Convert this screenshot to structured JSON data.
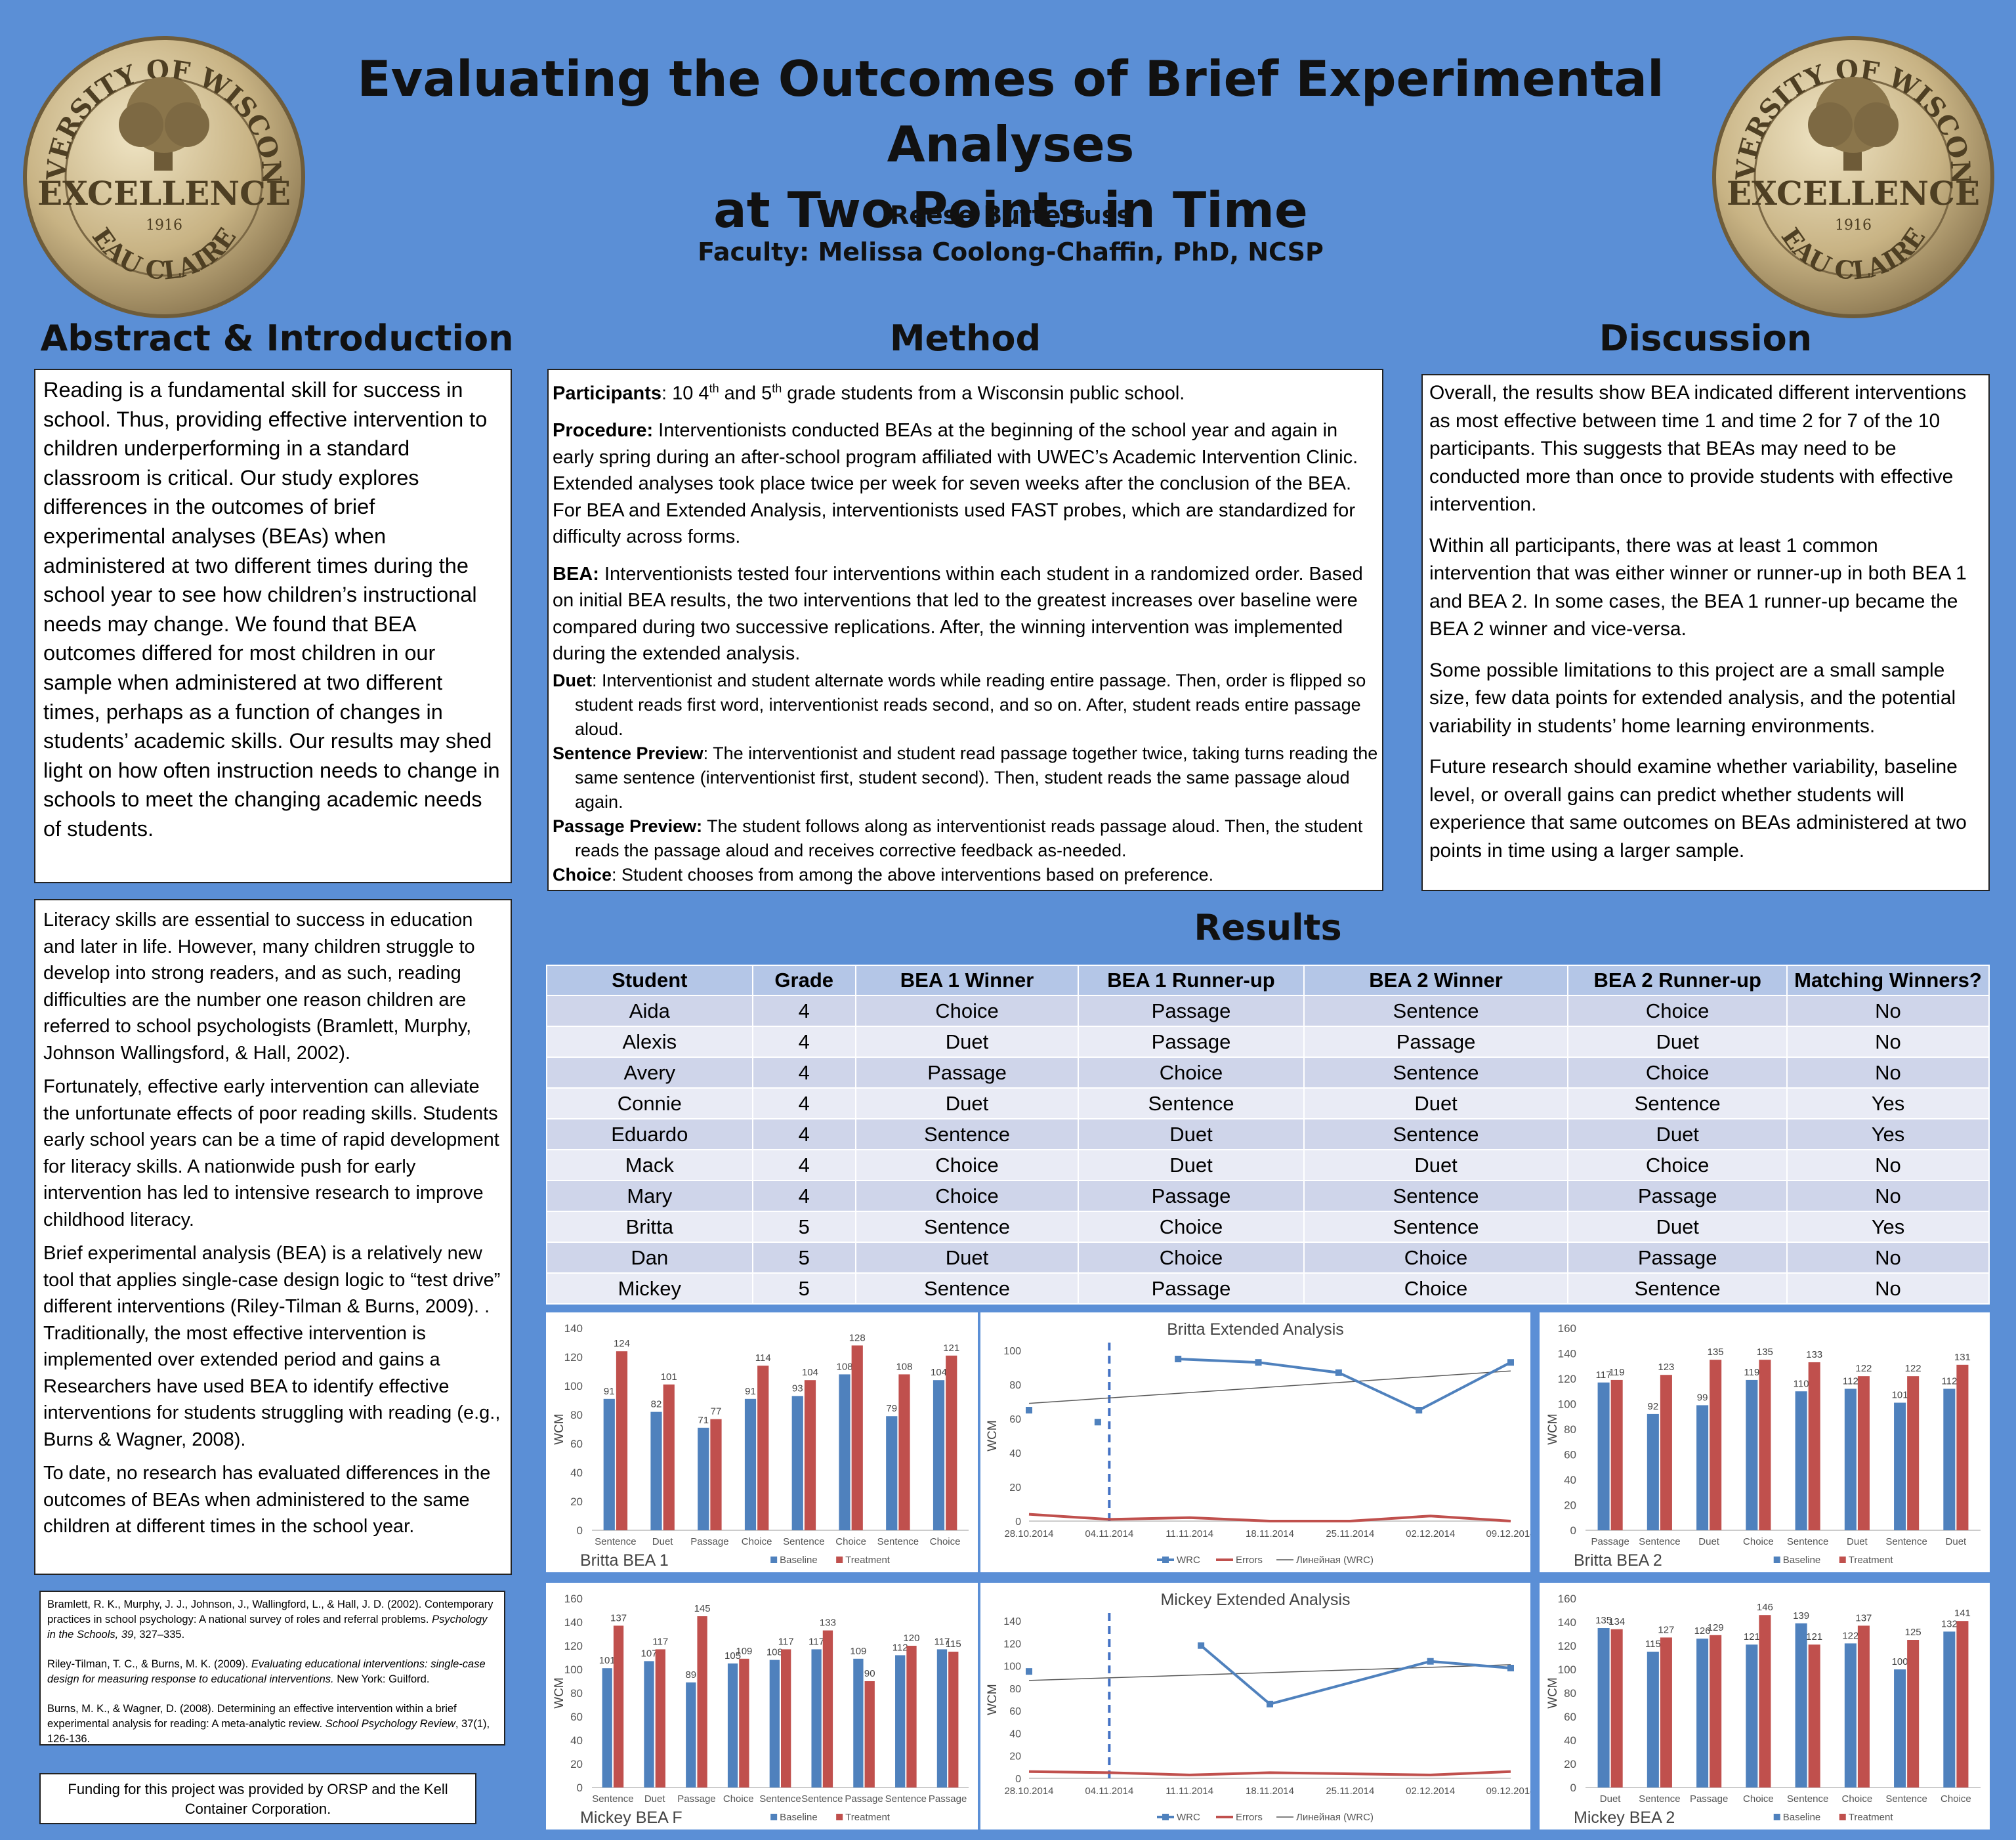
{
  "header": {
    "title_line1": "Evaluating the Outcomes of Brief Experimental Analyses",
    "title_line2": "at Two Points in Time",
    "author": "Reese Butterfuss",
    "faculty": "Faculty: Melissa Coolong-Chaffin, PhD, NCSP",
    "seal": {
      "top_text": "UNIVERSITY OF WISCONSIN",
      "middle_text": "EXCELLENCE",
      "year": "1916",
      "bottom_text": "EAU CLAIRE"
    }
  },
  "sections": {
    "abstract_title": "Abstract & Introduction",
    "method_title": "Method",
    "discussion_title": "Discussion",
    "results_title": "Results"
  },
  "abstract": "Reading is a fundamental skill for success in school. Thus, providing effective intervention to children underperforming in a standard classroom is critical. Our study explores differences in the outcomes of brief experimental analyses (BEAs) when administered at two different times during the school year to see how children’s instructional needs may change. We found that BEA outcomes differed for most children in our sample when administered at two different times, perhaps as a function of changes in students’ academic skills. Our results may shed light on how often instruction needs to change in schools to meet the changing academic needs of students.",
  "intro": [
    "Literacy skills are essential to success in education and later in life. However, many children struggle to develop into strong readers, and as such, reading difficulties are the number one reason children are referred to school psychologists (Bramlett, Murphy, Johnson Wallingsford, & Hall, 2002).",
    "Fortunately, effective early intervention can alleviate the unfortunate effects of poor reading skills. Students early school years can be a time of rapid development for literacy skills. A nationwide push for early intervention has led to intensive research to improve childhood literacy.",
    "Brief experimental analysis (BEA) is a relatively new tool that applies single-case design logic to “test drive” different interventions (Riley-Tilman & Burns, 2009). . Traditionally, the most effective intervention is implemented over extended period and gains a Researchers have used BEA to identify effective interventions for students struggling with reading (e.g., Burns & Wagner, 2008).",
    "To date, no research has evaluated differences in the outcomes of BEAs when administered to the same children at different times in the school year."
  ],
  "references": {
    "r1": "Bramlett, R. K., Murphy, J. J., Johnson, J., Wallingford, L., & Hall, J. D. (2002). Contemporary practices in school psychology: A national survey of roles and referral problems.",
    "r1_journal": "Psychology in the Schools, 39",
    "r1_end": ", 327–335.",
    "r2": "Riley-Tilman, T. C., & Burns, M. K. (2009).",
    "r2_title": "Evaluating educational interventions: single-case design for measuring response to educational interventions.",
    "r2_end": "New York: Guilford.",
    "r3": "Burns, M. K., & Wagner, D. (2008). Determining an effective intervention within a brief experimental analysis for reading: A meta-analytic review.",
    "r3_journal": "School Psychology Review",
    "r3_end": ", 37(1), 126-136."
  },
  "funding": "Funding for this project was provided by ORSP and the Kell Container Corporation.",
  "method": {
    "participants_label": "Participants",
    "participants_a": ": 10 4",
    "sup_th": "th",
    "participants_b": " and 5",
    "participants_c": " grade students from a Wisconsin public school.",
    "procedure_label": "Procedure:",
    "procedure": " Interventionists conducted BEAs at the beginning of the school year and again in early spring during an after-school program affiliated with UWEC’s Academic Intervention Clinic. Extended analyses took place twice per week for seven weeks after the conclusion of the BEA. For BEA and Extended Analysis, interventionists used FAST probes, which are standardized for difficulty across forms.",
    "bea_label": "BEA:",
    "bea": " Interventionists tested four interventions within each student in a randomized order. Based on initial BEA results, the two interventions that led to the greatest increases over baseline were compared during two successive replications. After, the winning intervention was implemented during the extended analysis.",
    "duet_label": "Duet",
    "duet": ": Interventionist and student alternate words while reading entire passage. Then, order is flipped so student reads first word, interventionist reads second, and so on. After, student reads entire passage aloud.",
    "sentence_label": "Sentence Preview",
    "sentence": ": The interventionist and student read passage together twice, taking turns reading the same sentence (interventionist first, student second). Then, student reads the same passage aloud again.",
    "passage_label": "Passage Preview:",
    "passage": " The student follows along as interventionist reads passage aloud. Then, the student reads the passage aloud and receives corrective feedback as-needed.",
    "choice_label": "Choice",
    "choice": ": Student chooses from among the above interventions based on preference."
  },
  "discussion": [
    "Overall, the results show BEA indicated different interventions as most effective between time 1 and time 2 for 7 of the 10 participants. This suggests that BEAs may need to be conducted more than once to provide students with effective intervention.",
    "Within all participants, there was at least 1 common intervention that was either winner or runner-up in both BEA 1 and BEA 2. In some cases, the BEA 1 runner-up became the BEA 2 winner and vice-versa.",
    "Some possible limitations to this project are a small sample size, few data points for extended analysis, and the potential variability in students’ home learning environments.",
    "Future research should examine whether variability, baseline level, or overall gains can predict whether students will experience that same outcomes on BEAs administered at two points in time using a larger sample."
  ],
  "results_table": {
    "headers": [
      "Student",
      "Grade",
      "BEA 1 Winner",
      "BEA 1 Runner-up",
      "BEA 2 Winner",
      "BEA 2 Runner-up",
      "Matching Winners?"
    ],
    "rows": [
      [
        "Aida",
        "4",
        "Choice",
        "Passage",
        "Sentence",
        "Choice",
        "No"
      ],
      [
        "Alexis",
        "4",
        "Duet",
        "Passage",
        "Passage",
        "Duet",
        "No"
      ],
      [
        "Avery",
        "4",
        "Passage",
        "Choice",
        "Sentence",
        "Choice",
        "No"
      ],
      [
        "Connie",
        "4",
        "Duet",
        "Sentence",
        "Duet",
        "Sentence",
        "Yes"
      ],
      [
        "Eduardo",
        "4",
        "Sentence",
        "Duet",
        "Sentence",
        "Duet",
        "Yes"
      ],
      [
        "Mack",
        "4",
        "Choice",
        "Duet",
        "Duet",
        "Choice",
        "No"
      ],
      [
        "Mary",
        "4",
        "Choice",
        "Passage",
        "Sentence",
        "Passage",
        "No"
      ],
      [
        "Britta",
        "5",
        "Sentence",
        "Choice",
        "Sentence",
        "Duet",
        "Yes"
      ],
      [
        "Dan",
        "5",
        "Duet",
        "Choice",
        "Choice",
        "Passage",
        "No"
      ],
      [
        "Mickey",
        "5",
        "Sentence",
        "Passage",
        "Choice",
        "Sentence",
        "No"
      ]
    ]
  },
  "colors": {
    "background": "#5b8fd6",
    "baseline": "#4f81bd",
    "treatment": "#c0504d",
    "trend": "#595959",
    "table_header": "#b4c6e7",
    "table_row_odd": "#cfd5ea",
    "table_row_even": "#e9ebf5"
  },
  "chart_data": [
    {
      "id": "britta-bea1",
      "type": "bar",
      "title": "Britta BEA 1",
      "ylabel": "WCM",
      "ylim": [
        0,
        140
      ],
      "yticks": [
        0,
        20,
        40,
        60,
        80,
        100,
        120,
        140
      ],
      "categories": [
        "Sentence",
        "Duet",
        "Passage",
        "Choice",
        "Sentence",
        "Choice",
        "Sentence",
        "Choice"
      ],
      "series": [
        {
          "name": "Baseline",
          "values": [
            91,
            82,
            71,
            91,
            93,
            108,
            79,
            104
          ]
        },
        {
          "name": "Treatment",
          "values": [
            124,
            101,
            77,
            114,
            104,
            128,
            108,
            121
          ]
        }
      ]
    },
    {
      "id": "britta-extended",
      "type": "line",
      "title": "Britta Extended Analysis",
      "ylim": [
        0,
        100
      ],
      "yticks": [
        0,
        20,
        40,
        60,
        80,
        100
      ],
      "x": [
        "28.10.2014",
        "04.11.2014",
        "11.11.2014",
        "18.11.2014",
        "25.11.2014",
        "02.12.2014",
        "09.12.2014"
      ],
      "phase_line": "04.11.2014",
      "series": [
        {
          "name": "WRC",
          "segments": [
            [
              [
                "28.10.2014",
                65
              ]
            ],
            [
              [
                "03.11.2014",
                58
              ]
            ],
            [
              [
                "10.11.2014",
                95
              ],
              [
                "17.11.2014",
                93
              ],
              [
                "24.11.2014",
                87
              ],
              [
                "01.12.2014",
                65
              ],
              [
                "09.12.2014",
                93
              ]
            ]
          ]
        },
        {
          "name": "Errors",
          "points": [
            [
              "28.10.2014",
              4
            ],
            [
              "04.11.2014",
              1
            ],
            [
              "11.11.2014",
              2
            ],
            [
              "18.11.2014",
              0
            ],
            [
              "25.11.2014",
              0
            ],
            [
              "02.12.2014",
              3
            ],
            [
              "09.12.2014",
              0
            ]
          ]
        },
        {
          "name": "Линейная (WRC)",
          "trend": [
            [
              "28.10.2014",
              69
            ],
            [
              "09.12.2014",
              88
            ]
          ]
        }
      ]
    },
    {
      "id": "britta-bea2",
      "type": "bar",
      "title": "Britta BEA 2",
      "ylabel": "WCM",
      "ylim": [
        0,
        160
      ],
      "yticks": [
        0,
        20,
        40,
        60,
        80,
        100,
        120,
        140,
        160
      ],
      "categories": [
        "Passage",
        "Sentence",
        "Duet",
        "Choice",
        "Sentence",
        "Duet",
        "Sentence",
        "Duet"
      ],
      "series": [
        {
          "name": "Baseline",
          "values": [
            117,
            92,
            99,
            119,
            110,
            112,
            101,
            112
          ]
        },
        {
          "name": "Treatment",
          "values": [
            119,
            123,
            135,
            135,
            133,
            122,
            122,
            131
          ]
        }
      ]
    },
    {
      "id": "mickey-bea1",
      "type": "bar",
      "title": "Mickey BEA F",
      "ylabel": "WCM",
      "ylim": [
        0,
        160
      ],
      "yticks": [
        0,
        20,
        40,
        60,
        80,
        100,
        120,
        140,
        160
      ],
      "categories": [
        "Sentence",
        "Duet",
        "Passage",
        "Choice",
        "Sentence",
        "Sentence",
        "Passage",
        "Sentence",
        "Passage"
      ],
      "series": [
        {
          "name": "Baseline",
          "values": [
            101,
            107,
            89,
            105,
            108,
            117,
            109,
            112,
            117
          ]
        },
        {
          "name": "Treatment",
          "values": [
            137,
            117,
            145,
            109,
            117,
            133,
            90,
            120,
            115
          ]
        }
      ]
    },
    {
      "id": "mickey-extended",
      "type": "line",
      "title": "Mickey Extended Analysis",
      "ylim": [
        0,
        140
      ],
      "yticks": [
        0,
        20,
        40,
        60,
        80,
        100,
        120,
        140
      ],
      "x": [
        "28.10.2014",
        "04.11.2014",
        "11.11.2014",
        "18.11.2014",
        "25.11.2014",
        "02.12.2014",
        "09.12.2014"
      ],
      "phase_line": "04.11.2014",
      "series": [
        {
          "name": "WRC",
          "segments": [
            [
              [
                "28.10.2014",
                95
              ]
            ],
            [
              [
                "12.11.2014",
                118
              ],
              [
                "18.11.2014",
                66
              ],
              [
                "02.12.2014",
                104
              ],
              [
                "09.12.2014",
                98
              ]
            ]
          ]
        },
        {
          "name": "Errors",
          "points": [
            [
              "28.10.2014",
              6
            ],
            [
              "04.11.2014",
              5
            ],
            [
              "11.11.2014",
              3
            ],
            [
              "18.11.2014",
              5
            ],
            [
              "25.11.2014",
              4
            ],
            [
              "02.12.2014",
              3
            ],
            [
              "09.12.2014",
              6
            ]
          ]
        },
        {
          "name": "Линейная (WRC)",
          "trend": [
            [
              "28.10.2014",
              87
            ],
            [
              "09.12.2014",
              101
            ]
          ]
        }
      ]
    },
    {
      "id": "mickey-bea2",
      "type": "bar",
      "title": "Mickey BEA 2",
      "ylabel": "WCM",
      "ylim": [
        0,
        160
      ],
      "yticks": [
        0,
        20,
        40,
        60,
        80,
        100,
        120,
        140,
        160
      ],
      "categories": [
        "Duet",
        "Sentence",
        "Passage",
        "Choice",
        "Sentence",
        "Choice",
        "Sentence",
        "Choice"
      ],
      "series": [
        {
          "name": "Baseline",
          "values": [
            135,
            115,
            126,
            121,
            139,
            122,
            100,
            132
          ]
        },
        {
          "name": "Treatment",
          "values": [
            134,
            127,
            129,
            146,
            121,
            137,
            125,
            141
          ]
        }
      ]
    }
  ]
}
